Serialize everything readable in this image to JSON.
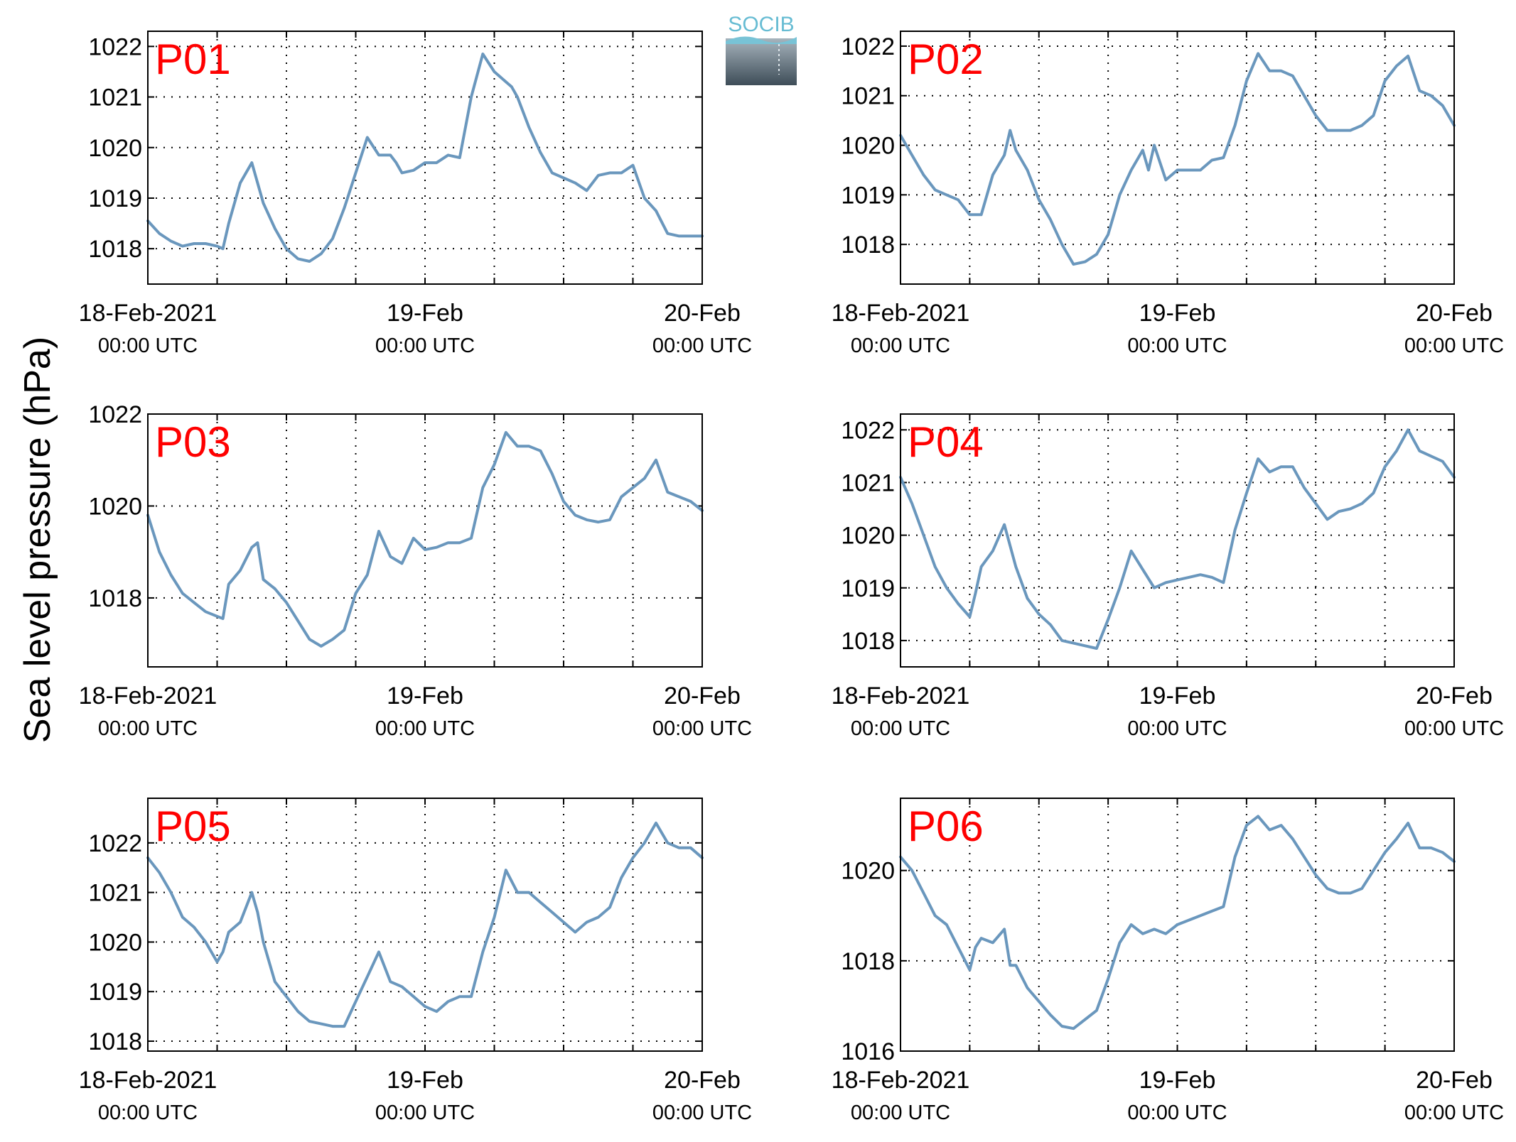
{
  "figure": {
    "ylabel": "Sea level pressure (hPa)",
    "logo_text": "SOCIB",
    "line_color": "#6a97bd",
    "label_color": "#ff0000",
    "x_tick_dates": [
      "18-Feb-2021",
      "19-Feb",
      "20-Feb"
    ],
    "x_tick_time": "00:00 UTC"
  },
  "chart_data": [
    {
      "type": "line",
      "title": "P01",
      "xlim": [
        0,
        48
      ],
      "ylim": [
        1017.3,
        1022.3
      ],
      "yticks": [
        1018,
        1019,
        1020,
        1021,
        1022
      ],
      "grid": true,
      "x_ticks": [
        "18-Feb-2021 00:00 UTC",
        "19-Feb 00:00 UTC",
        "20-Feb 00:00 UTC"
      ],
      "series": [
        {
          "x": [
            0,
            1,
            2,
            3,
            4,
            5,
            6,
            6.5,
            7,
            8,
            9,
            9.5,
            10,
            11,
            12,
            13,
            14,
            15,
            16,
            17,
            18,
            19,
            20,
            21,
            21.5,
            22,
            23,
            24,
            25,
            26,
            27,
            28,
            29,
            30,
            31,
            31.5,
            32,
            33,
            34,
            35,
            36,
            37,
            38,
            39,
            40,
            41,
            42,
            43,
            44,
            45,
            46,
            47,
            48
          ],
          "y": [
            1018.55,
            1018.3,
            1018.15,
            1018.05,
            1018.1,
            1018.1,
            1018.05,
            1018.0,
            1018.5,
            1019.3,
            1019.7,
            1019.3,
            1018.9,
            1018.4,
            1018.0,
            1017.8,
            1017.75,
            1017.9,
            1018.2,
            1018.8,
            1019.5,
            1020.2,
            1019.85,
            1019.85,
            1019.7,
            1019.5,
            1019.55,
            1019.7,
            1019.7,
            1019.85,
            1019.8,
            1021.0,
            1021.85,
            1021.5,
            1021.3,
            1021.2,
            1021.0,
            1020.4,
            1019.9,
            1019.5,
            1019.4,
            1019.3,
            1019.15,
            1019.45,
            1019.5,
            1019.5,
            1019.65,
            1019.0,
            1018.75,
            1018.3,
            1018.25,
            1018.25,
            1018.25
          ]
        }
      ]
    },
    {
      "type": "line",
      "title": "P02",
      "xlim": [
        0,
        48
      ],
      "ylim": [
        1017.2,
        1022.3
      ],
      "yticks": [
        1018,
        1019,
        1020,
        1021,
        1022
      ],
      "grid": true,
      "x_ticks": [
        "18-Feb-2021 00:00 UTC",
        "19-Feb 00:00 UTC",
        "20-Feb 00:00 UTC"
      ],
      "series": [
        {
          "x": [
            0,
            1,
            2,
            3,
            4,
            5,
            6,
            7,
            8,
            9,
            9.5,
            10,
            11,
            12,
            13,
            14,
            15,
            16,
            17,
            18,
            19,
            20,
            21,
            21.5,
            22,
            23,
            24,
            25,
            26,
            27,
            28,
            29,
            30,
            31,
            32,
            33,
            34,
            35,
            36,
            37,
            38,
            39,
            40,
            41,
            42,
            43,
            44,
            45,
            46,
            47,
            48
          ],
          "y": [
            1020.2,
            1019.8,
            1019.4,
            1019.1,
            1019.0,
            1018.9,
            1018.6,
            1018.6,
            1019.4,
            1019.8,
            1020.3,
            1019.9,
            1019.5,
            1018.9,
            1018.5,
            1018.0,
            1017.6,
            1017.65,
            1017.8,
            1018.2,
            1019.0,
            1019.5,
            1019.9,
            1019.5,
            1020.0,
            1019.3,
            1019.5,
            1019.5,
            1019.5,
            1019.7,
            1019.75,
            1020.4,
            1021.3,
            1021.85,
            1021.5,
            1021.5,
            1021.4,
            1021.0,
            1020.6,
            1020.3,
            1020.3,
            1020.3,
            1020.4,
            1020.6,
            1021.3,
            1021.6,
            1021.8,
            1021.1,
            1021.0,
            1020.8,
            1020.4
          ]
        }
      ]
    },
    {
      "type": "line",
      "title": "P03",
      "xlim": [
        0,
        48
      ],
      "ylim": [
        1016.5,
        1022.0
      ],
      "yticks": [
        1018,
        1020,
        1022
      ],
      "grid": true,
      "x_ticks": [
        "18-Feb-2021 00:00 UTC",
        "19-Feb 00:00 UTC",
        "20-Feb 00:00 UTC"
      ],
      "series": [
        {
          "x": [
            0,
            1,
            2,
            3,
            4,
            5,
            6,
            6.5,
            7,
            8,
            9,
            9.5,
            10,
            11,
            12,
            13,
            14,
            15,
            16,
            17,
            18,
            19,
            20,
            21,
            22,
            23,
            24,
            25,
            26,
            27,
            28,
            29,
            30,
            31,
            32,
            33,
            34,
            35,
            36,
            37,
            38,
            39,
            40,
            41,
            42,
            43,
            44,
            45,
            46,
            47,
            48
          ],
          "y": [
            1019.8,
            1019.0,
            1018.5,
            1018.1,
            1017.9,
            1017.7,
            1017.6,
            1017.55,
            1018.3,
            1018.6,
            1019.1,
            1019.2,
            1018.4,
            1018.2,
            1017.9,
            1017.5,
            1017.1,
            1016.95,
            1017.1,
            1017.3,
            1018.1,
            1018.5,
            1019.45,
            1018.9,
            1018.75,
            1019.3,
            1019.05,
            1019.1,
            1019.2,
            1019.2,
            1019.3,
            1020.4,
            1020.9,
            1021.6,
            1021.3,
            1021.3,
            1021.2,
            1020.7,
            1020.1,
            1019.8,
            1019.7,
            1019.65,
            1019.7,
            1020.2,
            1020.4,
            1020.6,
            1021.0,
            1020.3,
            1020.2,
            1020.1,
            1019.9
          ]
        }
      ]
    },
    {
      "type": "line",
      "title": "P04",
      "xlim": [
        0,
        48
      ],
      "ylim": [
        1017.5,
        1022.3
      ],
      "yticks": [
        1018,
        1019,
        1020,
        1021,
        1022
      ],
      "grid": true,
      "x_ticks": [
        "18-Feb-2021 00:00 UTC",
        "19-Feb 00:00 UTC",
        "20-Feb 00:00 UTC"
      ],
      "series": [
        {
          "x": [
            0,
            1,
            2,
            3,
            4,
            5,
            6,
            6.5,
            7,
            8,
            9,
            9.5,
            10,
            11,
            12,
            13,
            14,
            15,
            16,
            17,
            18,
            19,
            20,
            21,
            22,
            23,
            24,
            25,
            26,
            27,
            28,
            29,
            30,
            31,
            32,
            33,
            34,
            35,
            36,
            37,
            38,
            39,
            40,
            41,
            42,
            43,
            44,
            45,
            46,
            47,
            48
          ],
          "y": [
            1021.1,
            1020.6,
            1020.0,
            1019.4,
            1019.0,
            1018.7,
            1018.45,
            1018.9,
            1019.4,
            1019.7,
            1020.2,
            1019.8,
            1019.4,
            1018.8,
            1018.5,
            1018.3,
            1018.0,
            1017.95,
            1017.9,
            1017.85,
            1018.4,
            1019.0,
            1019.7,
            1019.35,
            1019.0,
            1019.1,
            1019.15,
            1019.2,
            1019.25,
            1019.2,
            1019.1,
            1020.1,
            1020.8,
            1021.45,
            1021.2,
            1021.3,
            1021.3,
            1020.9,
            1020.6,
            1020.3,
            1020.45,
            1020.5,
            1020.6,
            1020.8,
            1021.3,
            1021.6,
            1022.0,
            1021.6,
            1021.5,
            1021.4,
            1021.1
          ]
        }
      ]
    },
    {
      "type": "line",
      "title": "P05",
      "xlim": [
        0,
        48
      ],
      "ylim": [
        1017.8,
        1022.9
      ],
      "yticks": [
        1018,
        1019,
        1020,
        1021,
        1022
      ],
      "grid": true,
      "x_ticks": [
        "18-Feb-2021 00:00 UTC",
        "19-Feb 00:00 UTC",
        "20-Feb 00:00 UTC"
      ],
      "series": [
        {
          "x": [
            0,
            1,
            2,
            3,
            4,
            5,
            6,
            6.5,
            7,
            8,
            9,
            9.5,
            10,
            11,
            12,
            13,
            14,
            15,
            16,
            17,
            18,
            19,
            20,
            21,
            22,
            23,
            24,
            25,
            26,
            27,
            28,
            29,
            30,
            31,
            32,
            33,
            34,
            35,
            36,
            37,
            38,
            39,
            40,
            41,
            42,
            43,
            44,
            45,
            46,
            47,
            48
          ],
          "y": [
            1021.7,
            1021.4,
            1021.0,
            1020.5,
            1020.3,
            1020.0,
            1019.6,
            1019.8,
            1020.2,
            1020.4,
            1021.0,
            1020.6,
            1020.0,
            1019.2,
            1018.9,
            1018.6,
            1018.4,
            1018.35,
            1018.3,
            1018.3,
            1018.8,
            1019.3,
            1019.8,
            1019.2,
            1019.1,
            1018.9,
            1018.7,
            1018.6,
            1018.8,
            1018.9,
            1018.9,
            1019.8,
            1020.5,
            1021.45,
            1021.0,
            1021.0,
            1020.8,
            1020.6,
            1020.4,
            1020.2,
            1020.4,
            1020.5,
            1020.7,
            1021.3,
            1021.7,
            1022.0,
            1022.4,
            1022.0,
            1021.9,
            1021.9,
            1021.7
          ]
        }
      ]
    },
    {
      "type": "line",
      "title": "P06",
      "xlim": [
        0,
        48
      ],
      "ylim": [
        1016.0,
        1021.6
      ],
      "yticks": [
        1016,
        1018,
        1020
      ],
      "grid": true,
      "x_ticks": [
        "18-Feb-2021 00:00 UTC",
        "19-Feb 00:00 UTC",
        "20-Feb 00:00 UTC"
      ],
      "series": [
        {
          "x": [
            0,
            1,
            2,
            3,
            4,
            5,
            6,
            6.5,
            7,
            8,
            9,
            9.5,
            10,
            11,
            12,
            13,
            14,
            15,
            16,
            17,
            18,
            19,
            20,
            21,
            22,
            23,
            24,
            25,
            26,
            27,
            28,
            29,
            30,
            31,
            32,
            33,
            34,
            35,
            36,
            37,
            38,
            39,
            40,
            41,
            42,
            43,
            44,
            45,
            46,
            47,
            48
          ],
          "y": [
            1020.3,
            1020.0,
            1019.5,
            1019.0,
            1018.8,
            1018.3,
            1017.8,
            1018.3,
            1018.5,
            1018.4,
            1018.7,
            1017.9,
            1017.9,
            1017.4,
            1017.1,
            1016.8,
            1016.55,
            1016.5,
            1016.7,
            1016.9,
            1017.6,
            1018.4,
            1018.8,
            1018.6,
            1018.7,
            1018.6,
            1018.8,
            1018.9,
            1019.0,
            1019.1,
            1019.2,
            1020.3,
            1021.0,
            1021.2,
            1020.9,
            1021.0,
            1020.7,
            1020.3,
            1019.9,
            1019.6,
            1019.5,
            1019.5,
            1019.6,
            1020.0,
            1020.4,
            1020.7,
            1021.05,
            1020.5,
            1020.5,
            1020.4,
            1020.2
          ]
        }
      ]
    }
  ]
}
